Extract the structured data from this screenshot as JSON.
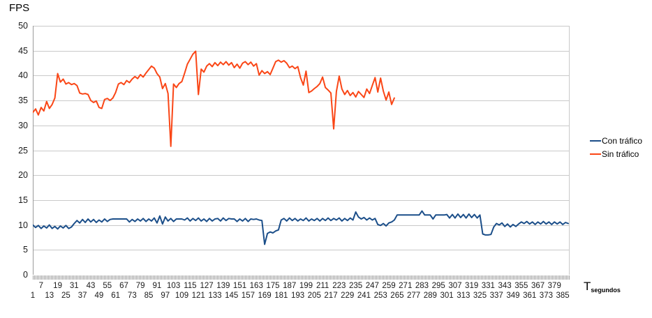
{
  "chart": {
    "y_axis_title": "FPS",
    "x_axis_title_main": "T",
    "x_axis_title_sub": "segundos",
    "legend": [
      {
        "label": "Con tráfico",
        "color": "#1b4e89"
      },
      {
        "label": "Sin tráfico",
        "color": "#fa4616"
      }
    ]
  },
  "colors": {
    "gridline": "#c9c9c9",
    "axis_line": "#9b9b9b",
    "tick_band": "#9f9f9f",
    "text": "#1a1a1a",
    "background": "#ffffff"
  },
  "chart_data": {
    "type": "line",
    "title": "",
    "ylabel": "FPS",
    "xlabel": "T segundos",
    "ylim": [
      0,
      50
    ],
    "xlim": [
      1,
      390
    ],
    "grid": "horizontal",
    "legend_position": "right",
    "y_ticks": [
      50,
      45,
      40,
      35,
      30,
      25,
      20,
      15,
      10,
      5,
      0
    ],
    "x_ticks_row_upper": [
      7,
      19,
      31,
      43,
      55,
      67,
      79,
      91,
      103,
      115,
      127,
      139,
      151,
      163,
      175,
      187,
      199,
      211,
      223,
      235,
      247,
      259,
      271,
      283,
      295,
      307,
      319,
      331,
      343,
      355,
      367,
      379
    ],
    "x_ticks_row_lower": [
      1,
      13,
      25,
      37,
      49,
      61,
      73,
      85,
      97,
      109,
      121,
      133,
      145,
      157,
      169,
      181,
      193,
      205,
      217,
      229,
      241,
      253,
      265,
      277,
      289,
      301,
      313,
      325,
      337,
      349,
      361,
      373,
      385
    ],
    "series": [
      {
        "name": "Con tráfico",
        "color": "#1b4e89",
        "x_start": 1,
        "x_step": 2,
        "values": [
          10.0,
          9.5,
          9.9,
          9.3,
          9.8,
          9.4,
          10.0,
          9.3,
          9.7,
          9.2,
          9.8,
          9.4,
          9.9,
          9.3,
          9.6,
          10.3,
          10.9,
          10.4,
          11.1,
          10.5,
          11.2,
          10.6,
          11.1,
          10.5,
          11.0,
          10.6,
          11.2,
          10.7,
          11.1,
          11.2,
          11.2,
          11.2,
          11.2,
          11.2,
          11.2,
          10.6,
          11.1,
          10.7,
          11.2,
          10.8,
          11.3,
          10.7,
          11.2,
          10.8,
          11.4,
          10.4,
          11.8,
          10.2,
          11.6,
          10.8,
          11.3,
          10.7,
          11.2,
          11.2,
          11.2,
          11.0,
          11.4,
          10.8,
          11.3,
          10.9,
          11.4,
          10.8,
          11.2,
          10.7,
          11.3,
          10.8,
          11.2,
          11.3,
          10.8,
          11.4,
          10.9,
          11.3,
          11.2,
          11.2,
          10.7,
          11.2,
          10.8,
          11.3,
          10.7,
          11.2,
          11.1,
          11.2,
          11.0,
          10.9,
          6.1,
          8.3,
          8.6,
          8.4,
          8.8,
          9.0,
          11.0,
          11.3,
          10.8,
          11.4,
          10.9,
          11.3,
          10.8,
          11.2,
          10.9,
          11.4,
          10.8,
          11.2,
          10.9,
          11.3,
          10.8,
          11.3,
          10.9,
          11.4,
          10.9,
          11.3,
          11.0,
          11.4,
          10.8,
          11.3,
          10.9,
          11.4,
          11.0,
          12.6,
          11.6,
          11.2,
          11.5,
          11.0,
          11.4,
          11.0,
          11.3,
          10.1,
          9.9,
          10.3,
          9.8,
          10.4,
          10.6,
          11.0,
          12.0,
          12.0,
          12.0,
          12.0,
          12.0,
          12.0,
          12.0,
          12.0,
          12.0,
          12.8,
          12.0,
          12.0,
          12.0,
          11.2,
          12.0,
          12.0,
          12.0,
          12.0,
          12.1,
          11.4,
          12.1,
          11.4,
          12.2,
          11.5,
          12.1,
          11.4,
          12.2,
          11.5,
          12.1,
          11.4,
          12.0,
          8.2,
          8.0,
          8.0,
          8.1,
          9.6,
          10.3,
          10.0,
          10.4,
          9.7,
          10.2,
          9.6,
          10.1,
          9.7,
          10.2,
          10.6,
          10.3,
          10.7,
          10.2,
          10.6,
          10.1,
          10.6,
          10.2,
          10.7,
          10.2,
          10.6,
          10.1,
          10.6,
          10.2,
          10.6,
          10.1,
          10.5,
          10.3
        ]
      },
      {
        "name": "Sin tráfico",
        "color": "#fa4616",
        "x_start": 1,
        "x_step": 2,
        "values": [
          32.6,
          33.3,
          32.1,
          33.6,
          32.9,
          34.8,
          33.4,
          34.2,
          35.5,
          40.4,
          38.7,
          39.3,
          38.3,
          38.6,
          38.2,
          38.4,
          38.0,
          36.5,
          36.3,
          36.4,
          36.2,
          35.0,
          34.6,
          34.9,
          33.6,
          33.4,
          35.2,
          35.4,
          35.0,
          35.5,
          36.6,
          38.3,
          38.6,
          38.2,
          39.0,
          38.6,
          39.3,
          39.8,
          39.4,
          40.2,
          39.7,
          40.5,
          41.2,
          41.9,
          41.5,
          40.4,
          39.7,
          37.4,
          38.4,
          36.4,
          25.8,
          38.3,
          37.6,
          38.4,
          38.8,
          40.5,
          42.3,
          43.3,
          44.3,
          44.9,
          36.2,
          41.3,
          40.7,
          41.9,
          42.4,
          41.8,
          42.6,
          42.0,
          42.7,
          42.2,
          42.8,
          42.1,
          42.6,
          41.6,
          42.3,
          41.5,
          42.5,
          42.8,
          42.2,
          42.7,
          41.9,
          42.4,
          40.1,
          41.0,
          40.4,
          40.8,
          40.2,
          41.5,
          42.8,
          43.1,
          42.7,
          43.0,
          42.5,
          41.6,
          41.9,
          41.4,
          41.8,
          39.6,
          38.1,
          40.9,
          36.6,
          36.9,
          37.4,
          37.8,
          38.4,
          39.7,
          37.6,
          37.1,
          36.5,
          29.3,
          36.8,
          39.9,
          37.3,
          36.2,
          37.0,
          36.0,
          36.6,
          35.7,
          36.8,
          36.2,
          35.6,
          37.3,
          36.4,
          38.0,
          39.6,
          36.7,
          39.5,
          36.9,
          35.1,
          36.7,
          34.2,
          35.5
        ]
      }
    ]
  }
}
